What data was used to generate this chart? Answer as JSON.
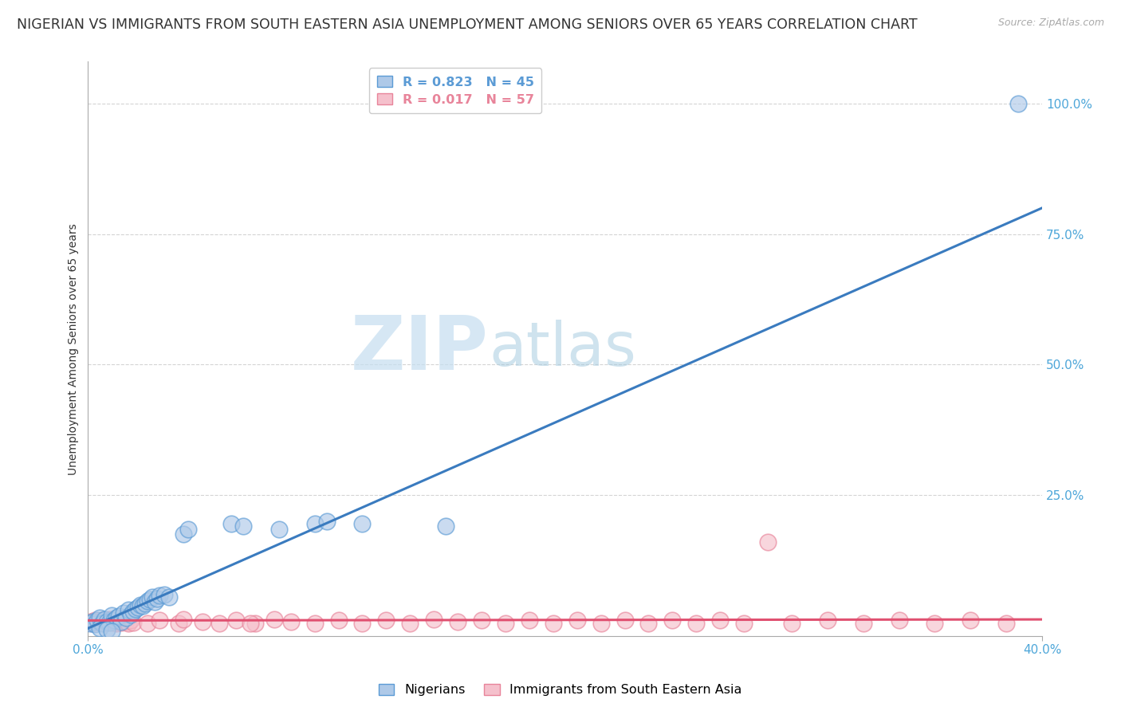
{
  "title": "NIGERIAN VS IMMIGRANTS FROM SOUTH EASTERN ASIA UNEMPLOYMENT AMONG SENIORS OVER 65 YEARS CORRELATION CHART",
  "source": "Source: ZipAtlas.com",
  "ylabel": "Unemployment Among Seniors over 65 years",
  "xlim": [
    0.0,
    0.4
  ],
  "ylim": [
    -0.02,
    1.08
  ],
  "xticks": [
    0.0,
    0.4
  ],
  "xticklabels": [
    "0.0%",
    "40.0%"
  ],
  "ytick_positions": [
    0.25,
    0.5,
    0.75,
    1.0
  ],
  "ytick_labels": [
    "25.0%",
    "50.0%",
    "75.0%",
    "100.0%"
  ],
  "watermark_zip": "ZIP",
  "watermark_atlas": "atlas",
  "legend_entries": [
    {
      "label": "R = 0.823   N = 45",
      "color": "#5b9bd5"
    },
    {
      "label": "R = 0.017   N = 57",
      "color": "#e8849a"
    }
  ],
  "nigerians": {
    "face_color": "#aec9e8",
    "edge_color": "#5b9bd5",
    "trend_color": "#3a7bbf",
    "trend_x0": 0.0,
    "trend_y0": -0.005,
    "trend_x1": 0.4,
    "trend_y1": 0.8,
    "points": [
      [
        0.001,
        0.005
      ],
      [
        0.002,
        0.008
      ],
      [
        0.003,
        0.003
      ],
      [
        0.004,
        0.01
      ],
      [
        0.005,
        0.015
      ],
      [
        0.006,
        0.005
      ],
      [
        0.007,
        0.012
      ],
      [
        0.008,
        0.008
      ],
      [
        0.009,
        0.006
      ],
      [
        0.01,
        0.02
      ],
      [
        0.011,
        0.01
      ],
      [
        0.012,
        0.015
      ],
      [
        0.013,
        0.018
      ],
      [
        0.014,
        0.008
      ],
      [
        0.015,
        0.025
      ],
      [
        0.016,
        0.015
      ],
      [
        0.017,
        0.03
      ],
      [
        0.018,
        0.022
      ],
      [
        0.019,
        0.028
      ],
      [
        0.02,
        0.032
      ],
      [
        0.021,
        0.035
      ],
      [
        0.022,
        0.04
      ],
      [
        0.023,
        0.038
      ],
      [
        0.024,
        0.042
      ],
      [
        0.025,
        0.048
      ],
      [
        0.026,
        0.05
      ],
      [
        0.027,
        0.055
      ],
      [
        0.028,
        0.045
      ],
      [
        0.029,
        0.052
      ],
      [
        0.03,
        0.058
      ],
      [
        0.032,
        0.06
      ],
      [
        0.034,
        0.055
      ],
      [
        0.005,
        -0.005
      ],
      [
        0.008,
        -0.008
      ],
      [
        0.01,
        -0.01
      ],
      [
        0.04,
        0.175
      ],
      [
        0.042,
        0.185
      ],
      [
        0.06,
        0.195
      ],
      [
        0.065,
        0.19
      ],
      [
        0.095,
        0.195
      ],
      [
        0.1,
        0.2
      ],
      [
        0.115,
        0.195
      ],
      [
        0.15,
        0.19
      ],
      [
        0.39,
        1.0
      ],
      [
        0.08,
        0.185
      ]
    ]
  },
  "sea_immigrants": {
    "face_color": "#f5c0cc",
    "edge_color": "#e8849a",
    "trend_color": "#e05070",
    "trend_x0": 0.0,
    "trend_y0": 0.01,
    "trend_x1": 0.4,
    "trend_y1": 0.012,
    "points": [
      [
        0.001,
        0.008
      ],
      [
        0.002,
        0.005
      ],
      [
        0.003,
        0.01
      ],
      [
        0.004,
        0.008
      ],
      [
        0.005,
        0.006
      ],
      [
        0.006,
        0.01
      ],
      [
        0.007,
        0.005
      ],
      [
        0.008,
        0.008
      ],
      [
        0.009,
        0.012
      ],
      [
        0.01,
        0.006
      ],
      [
        0.011,
        0.008
      ],
      [
        0.012,
        0.005
      ],
      [
        0.013,
        0.01
      ],
      [
        0.014,
        0.006
      ],
      [
        0.015,
        0.012
      ],
      [
        0.016,
        0.008
      ],
      [
        0.017,
        0.005
      ],
      [
        0.018,
        0.01
      ],
      [
        0.019,
        0.006
      ],
      [
        0.025,
        0.005
      ],
      [
        0.03,
        0.01
      ],
      [
        0.038,
        0.005
      ],
      [
        0.04,
        0.012
      ],
      [
        0.048,
        0.008
      ],
      [
        0.055,
        0.005
      ],
      [
        0.062,
        0.01
      ],
      [
        0.07,
        0.005
      ],
      [
        0.078,
        0.012
      ],
      [
        0.085,
        0.008
      ],
      [
        0.095,
        0.005
      ],
      [
        0.105,
        0.01
      ],
      [
        0.115,
        0.005
      ],
      [
        0.125,
        0.01
      ],
      [
        0.135,
        0.005
      ],
      [
        0.145,
        0.012
      ],
      [
        0.155,
        0.008
      ],
      [
        0.165,
        0.01
      ],
      [
        0.175,
        0.005
      ],
      [
        0.185,
        0.01
      ],
      [
        0.195,
        0.005
      ],
      [
        0.205,
        0.01
      ],
      [
        0.215,
        0.005
      ],
      [
        0.225,
        0.01
      ],
      [
        0.235,
        0.005
      ],
      [
        0.245,
        0.01
      ],
      [
        0.255,
        0.005
      ],
      [
        0.265,
        0.01
      ],
      [
        0.275,
        0.005
      ],
      [
        0.285,
        0.16
      ],
      [
        0.295,
        0.005
      ],
      [
        0.31,
        0.01
      ],
      [
        0.325,
        0.005
      ],
      [
        0.34,
        0.01
      ],
      [
        0.355,
        0.005
      ],
      [
        0.37,
        0.01
      ],
      [
        0.385,
        0.005
      ],
      [
        0.068,
        0.005
      ]
    ]
  },
  "background_color": "#ffffff",
  "grid_color": "#d0d0d0",
  "title_fontsize": 12.5,
  "axis_label_fontsize": 10,
  "tick_fontsize": 11,
  "legend_fontsize": 11.5
}
